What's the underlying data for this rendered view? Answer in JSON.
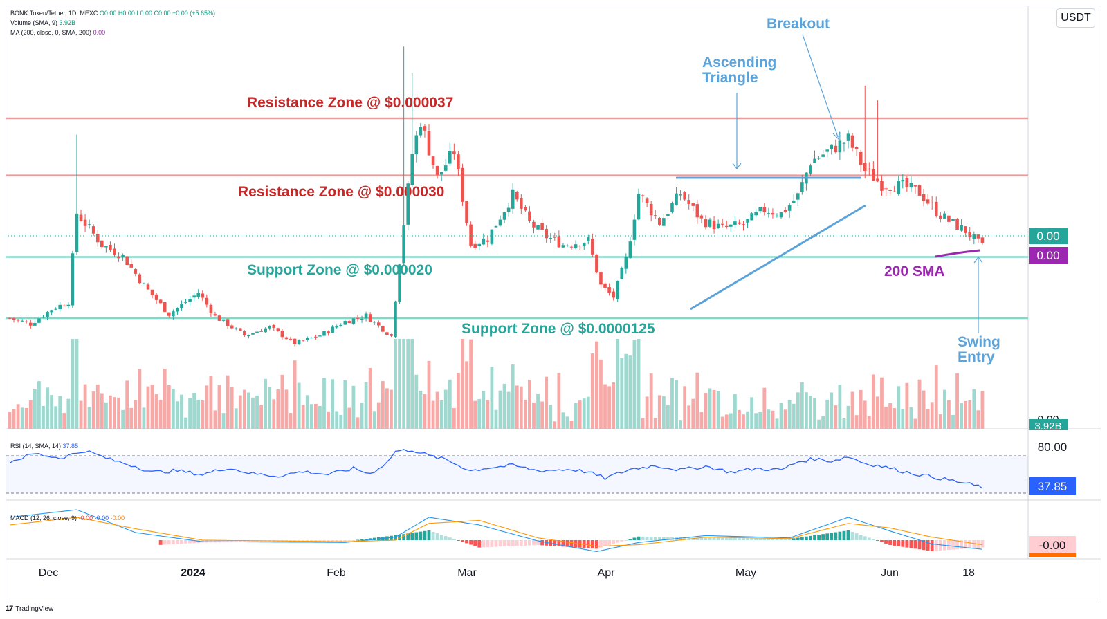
{
  "header": {
    "symbol_line": "BONK Token/Tether, 1D, MEXC",
    "ohlc": "O0.00 H0.00 L0.00 C0.00",
    "change": "+0.00 (+5.65%)",
    "volume_label": "Volume (SMA, 9)",
    "volume_value": "3.92B",
    "ma_label": "MA (200, close, 0, SMA, 200)",
    "ma_value": "0.00"
  },
  "currency_button": "USDT",
  "watermark": "TradingView",
  "colors": {
    "up": "#26a69a",
    "down": "#ef5350",
    "up_vol": "#9ed8cf",
    "down_vol": "#f7a9a7",
    "resistance": "#ef9a9a",
    "resistance_text": "#c62828",
    "support": "#80d8cc",
    "support_text": "#26a69a",
    "annotation": "#5ba3d8",
    "sma": "#9c27b0",
    "rsi": "#2962ff",
    "macd": "#2196f3",
    "signal": "#ff9800"
  },
  "chart_data": [
    {
      "type": "candlestick",
      "title": "BONK Token/Tether, 1D, MEXC",
      "x_tick_labels": [
        "Dec",
        "2024",
        "Feb",
        "Mar",
        "Apr",
        "May",
        "Jun",
        "18"
      ],
      "price_scale_labels": [
        "0.00",
        "0.00",
        "0.00"
      ],
      "last_price_label": "0.00",
      "sma_label": "0.00",
      "volume_label": "3.92B",
      "levels": [
        {
          "price": 3.7e-05,
          "label": "Resistance Zone @ $0.000037",
          "kind": "resistance"
        },
        {
          "price": 3e-05,
          "label": "Resistance Zone @ $0.000030",
          "kind": "resistance"
        },
        {
          "price": 2e-05,
          "label": "Support Zone @ $0.000020",
          "kind": "support"
        },
        {
          "price": 1.25e-05,
          "label": "Support Zone @ $0.0000125",
          "kind": "support"
        }
      ],
      "annotations": [
        "Breakout",
        "Ascending\nTriangle",
        "200 SMA",
        "Swing\nEntry"
      ],
      "close_path": [
        [
          0,
          1.25e-05
        ],
        [
          5,
          1.18e-05
        ],
        [
          10,
          1.36e-05
        ],
        [
          14,
          1.45e-05
        ],
        [
          16,
          2.54e-05
        ],
        [
          22,
          2.15e-05
        ],
        [
          27,
          2.01e-05
        ],
        [
          32,
          1.65e-05
        ],
        [
          38,
          1.3e-05
        ],
        [
          45,
          1.56e-05
        ],
        [
          49,
          1.27e-05
        ],
        [
          56,
          1.04e-05
        ],
        [
          62,
          1.14e-05
        ],
        [
          68,
          9.4e-06
        ],
        [
          74,
          1.04e-05
        ],
        [
          80,
          1.21e-05
        ],
        [
          85,
          1.28e-05
        ],
        [
          91,
          1.03e-05
        ],
        [
          94,
          2.41e-05
        ],
        [
          96,
          3.27e-05
        ],
        [
          98,
          3.67e-05
        ],
        [
          102,
          2.97e-05
        ],
        [
          106,
          3.3e-05
        ],
        [
          110,
          2.15e-05
        ],
        [
          114,
          2.23e-05
        ],
        [
          120,
          2.76e-05
        ],
        [
          124,
          2.42e-05
        ],
        [
          128,
          2.25e-05
        ],
        [
          132,
          2.15e-05
        ],
        [
          138,
          2.2e-05
        ],
        [
          141,
          1.65e-05
        ],
        [
          144,
          1.51e-05
        ],
        [
          147,
          1.97e-05
        ],
        [
          150,
          2.78e-05
        ],
        [
          155,
          2.42e-05
        ],
        [
          160,
          2.78e-05
        ],
        [
          165,
          2.45e-05
        ],
        [
          170,
          2.35e-05
        ],
        [
          175,
          2.4e-05
        ],
        [
          180,
          2.58e-05
        ],
        [
          184,
          2.53e-05
        ],
        [
          188,
          2.75e-05
        ],
        [
          191,
          3.17e-05
        ],
        [
          196,
          3.32e-05
        ],
        [
          200,
          3.44e-05
        ],
        [
          204,
          3.06e-05
        ],
        [
          208,
          2.89e-05
        ],
        [
          213,
          2.87e-05
        ],
        [
          217,
          2.79e-05
        ],
        [
          221,
          2.56e-05
        ],
        [
          224,
          2.44e-05
        ],
        [
          228,
          2.32e-05
        ],
        [
          232,
          2.12e-05
        ]
      ]
    },
    {
      "type": "line",
      "title": "RSI (14, SMA, 14)",
      "value_label": "37.85",
      "levels": [
        80,
        30
      ],
      "scale_label": "80.00",
      "points": [
        [
          0,
          72
        ],
        [
          6,
          83
        ],
        [
          12,
          77
        ],
        [
          18,
          87
        ],
        [
          24,
          75
        ],
        [
          30,
          66
        ],
        [
          34,
          58
        ],
        [
          40,
          60
        ],
        [
          46,
          55
        ],
        [
          52,
          64
        ],
        [
          58,
          56
        ],
        [
          64,
          53
        ],
        [
          70,
          59
        ],
        [
          76,
          55
        ],
        [
          82,
          63
        ],
        [
          86,
          56
        ],
        [
          90,
          71
        ],
        [
          92,
          86
        ],
        [
          96,
          88
        ],
        [
          100,
          80
        ],
        [
          104,
          75
        ],
        [
          110,
          60
        ],
        [
          114,
          64
        ],
        [
          120,
          67
        ],
        [
          126,
          60
        ],
        [
          134,
          62
        ],
        [
          138,
          58
        ],
        [
          142,
          50
        ],
        [
          148,
          62
        ],
        [
          154,
          67
        ],
        [
          160,
          61
        ],
        [
          166,
          66
        ],
        [
          172,
          58
        ],
        [
          178,
          63
        ],
        [
          184,
          61
        ],
        [
          188,
          72
        ],
        [
          192,
          76
        ],
        [
          196,
          73
        ],
        [
          200,
          79
        ],
        [
          204,
          70
        ],
        [
          208,
          66
        ],
        [
          214,
          58
        ],
        [
          220,
          52
        ],
        [
          228,
          43
        ],
        [
          232,
          38
        ]
      ]
    },
    {
      "type": "line",
      "title": "MACD (12, 26, close, 9)",
      "value_label": "-0.00",
      "legend_values": [
        "-0.00",
        "-0.00",
        "-0.00"
      ],
      "series": [
        {
          "name": "MACD",
          "points": [
            [
              0,
              3e-06
            ],
            [
              16,
              4e-06
            ],
            [
              30,
              1e-06
            ],
            [
              46,
              -2e-07
            ],
            [
              80,
              -3e-07
            ],
            [
              92,
              4e-07
            ],
            [
              100,
              3e-06
            ],
            [
              112,
              2e-06
            ],
            [
              126,
              -1e-07
            ],
            [
              140,
              -1.5e-06
            ],
            [
              150,
              -3e-07
            ],
            [
              166,
              6e-07
            ],
            [
              186,
              3e-07
            ],
            [
              200,
              3e-06
            ],
            [
              210,
              1.2e-06
            ],
            [
              220,
              -5e-07
            ],
            [
              232,
              -1.2e-06
            ]
          ]
        },
        {
          "name": "Signal",
          "points": [
            [
              0,
              2e-06
            ],
            [
              16,
              3e-06
            ],
            [
              30,
              1.5e-06
            ],
            [
              46,
              0.0
            ],
            [
              80,
              -2e-07
            ],
            [
              92,
              0.0
            ],
            [
              100,
              2.2e-06
            ],
            [
              112,
              2.6e-06
            ],
            [
              126,
              3e-07
            ],
            [
              140,
              -8e-07
            ],
            [
              150,
              -6e-07
            ],
            [
              166,
              4e-07
            ],
            [
              186,
              2e-07
            ],
            [
              200,
              2.2e-06
            ],
            [
              210,
              1.6e-06
            ],
            [
              220,
              4e-07
            ],
            [
              232,
              -6e-07
            ]
          ]
        }
      ]
    }
  ]
}
